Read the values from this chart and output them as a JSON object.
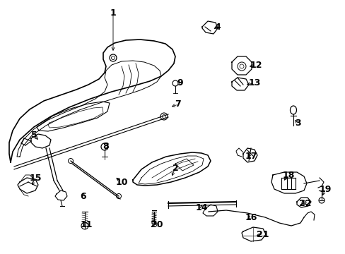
{
  "bg_color": "#ffffff",
  "line_color": "#000000",
  "font_size": 9,
  "labels_data": [
    [
      "1",
      160,
      18,
      160,
      75
    ],
    [
      "2",
      248,
      238,
      242,
      252
    ],
    [
      "3",
      422,
      175,
      415,
      168
    ],
    [
      "4",
      308,
      38,
      300,
      42
    ],
    [
      "5",
      48,
      192,
      56,
      200
    ],
    [
      "6",
      118,
      278,
      118,
      270
    ],
    [
      "7",
      252,
      148,
      240,
      152
    ],
    [
      "8",
      150,
      208,
      148,
      215
    ],
    [
      "9",
      255,
      118,
      250,
      115
    ],
    [
      "10",
      172,
      258,
      162,
      250
    ],
    [
      "11",
      122,
      318,
      120,
      314
    ],
    [
      "12",
      362,
      92,
      350,
      95
    ],
    [
      "13",
      360,
      118,
      346,
      120
    ],
    [
      "14",
      285,
      295,
      285,
      290
    ],
    [
      "15",
      50,
      252,
      44,
      265
    ],
    [
      "16",
      355,
      308,
      350,
      310
    ],
    [
      "17",
      355,
      222,
      350,
      222
    ],
    [
      "18",
      408,
      248,
      400,
      258
    ],
    [
      "19",
      460,
      268,
      455,
      280
    ],
    [
      "20",
      222,
      318,
      218,
      314
    ],
    [
      "21",
      372,
      332,
      360,
      334
    ],
    [
      "22",
      432,
      288,
      426,
      290
    ]
  ]
}
